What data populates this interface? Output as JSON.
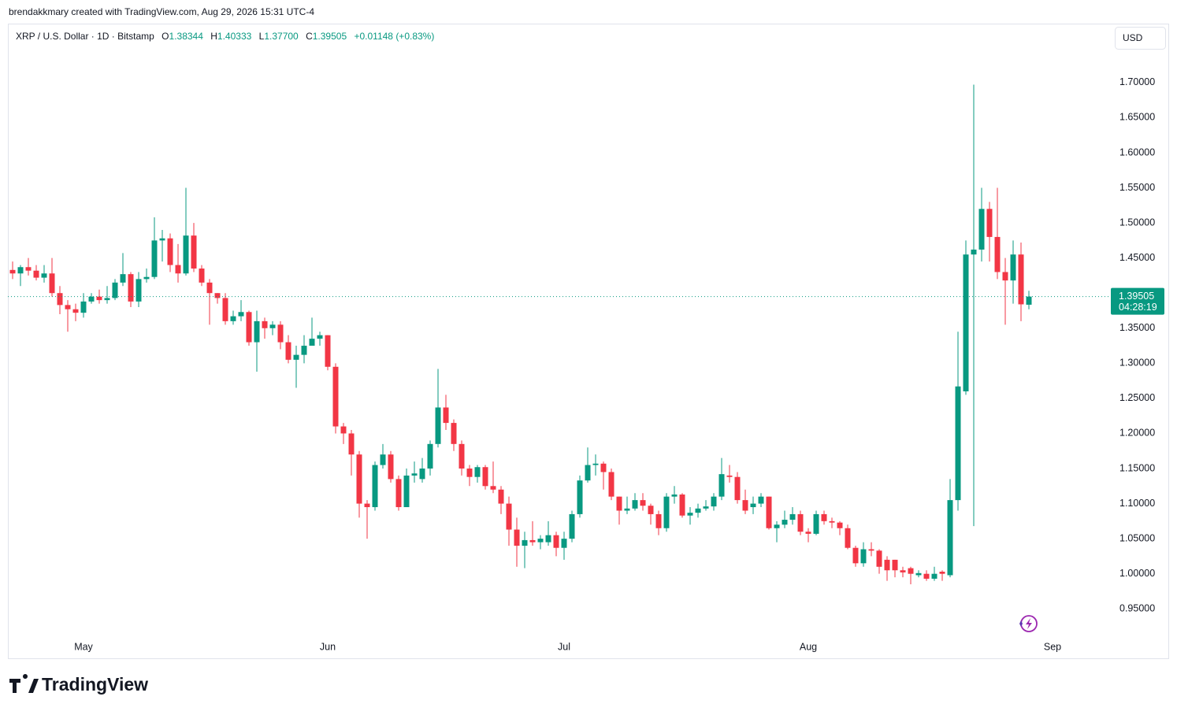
{
  "header": {
    "credit": "brendakkmary created with TradingView.com, Aug 29, 2026 15:31 UTC-4",
    "symbol": "XRP / U.S. Dollar · 1D · Bitstamp",
    "open_key": "O",
    "open_text": "1.38344",
    "high_key": "H",
    "high_text": "1.40333",
    "low_key": "L",
    "low_text": "1.37700",
    "close_key": "C",
    "close_text": "1.39505",
    "change_text": "+0.01148 (+0.83%)"
  },
  "currency_button": "USD",
  "last_price_label": "1.39505",
  "countdown": "04:28:19",
  "logo": "TradingView",
  "chart_data": {
    "type": "candlestick",
    "up_color": "#089981",
    "down_color": "#f23645",
    "categories": [
      null,
      null,
      null,
      null,
      null,
      null,
      null,
      null,
      null,
      "May",
      null,
      null,
      null,
      null,
      null,
      null,
      null,
      null,
      null,
      null,
      null,
      null,
      null,
      null,
      null,
      null,
      null,
      null,
      null,
      null,
      null,
      null,
      null,
      null,
      null,
      null,
      null,
      null,
      null,
      null,
      "Jun",
      null,
      null,
      null,
      null,
      null,
      null,
      null,
      null,
      null,
      null,
      null,
      null,
      null,
      null,
      null,
      null,
      null,
      null,
      null,
      null,
      null,
      null,
      null,
      null,
      null,
      null,
      null,
      null,
      null,
      "Jul",
      null,
      null,
      null,
      null,
      null,
      null,
      null,
      null,
      null,
      null,
      null,
      null,
      null,
      null,
      null,
      null,
      null,
      null,
      null,
      null,
      null,
      null,
      null,
      null,
      null,
      null,
      null,
      null,
      null,
      null,
      "Aug",
      null,
      null,
      null,
      null,
      null,
      null,
      null,
      null,
      null,
      null,
      null,
      null,
      null,
      null,
      null,
      null,
      null,
      null,
      null,
      null,
      null,
      null,
      null,
      null,
      null,
      null,
      null,
      null,
      null,
      null,
      "Sep"
    ],
    "open": [
      1.433,
      1.428,
      1.437,
      1.432,
      1.422,
      1.428,
      1.4,
      1.383,
      1.377,
      1.372,
      1.388,
      1.395,
      1.39,
      1.393,
      1.415,
      1.427,
      1.388,
      1.42,
      1.423,
      1.475,
      1.478,
      1.44,
      1.428,
      1.482,
      1.435,
      1.415,
      1.4,
      1.393,
      1.36,
      1.367,
      1.373,
      1.33,
      1.36,
      1.35,
      1.355,
      1.33,
      1.305,
      1.312,
      1.325,
      1.335,
      1.34,
      1.295,
      1.21,
      1.2,
      1.17,
      1.1,
      1.095,
      1.155,
      1.17,
      1.135,
      1.095,
      1.14,
      1.135,
      1.15,
      1.185,
      1.237,
      1.215,
      1.185,
      1.15,
      1.138,
      1.152,
      1.125,
      1.12,
      1.1,
      1.063,
      1.04,
      1.048,
      1.045,
      1.045,
      1.055,
      1.037,
      1.05,
      1.085,
      1.133,
      1.155,
      1.157,
      1.145,
      1.11,
      1.09,
      1.093,
      1.105,
      1.097,
      1.085,
      1.065,
      1.11,
      1.113,
      1.083,
      1.087,
      1.093,
      1.096,
      1.11,
      1.14,
      1.138,
      1.105,
      1.095,
      1.1,
      1.11,
      1.065,
      1.07,
      1.077,
      1.085,
      1.06,
      1.057,
      1.085,
      1.075,
      1.073,
      1.065,
      1.037,
      1.015,
      1.035,
      1.033,
      1.02,
      1.02,
      1.005,
      1.008,
      0.998,
      1.0,
      0.993,
      1.003,
      0.998,
      1.105,
      1.26,
      1.455,
      1.462,
      1.52,
      1.48,
      1.43,
      1.418,
      1.455,
      1.38344,
      null,
      null,
      null
    ],
    "high": [
      1.445,
      1.44,
      1.45,
      1.44,
      1.44,
      1.45,
      1.41,
      1.39,
      1.385,
      1.4,
      1.4,
      1.405,
      1.41,
      1.42,
      1.457,
      1.43,
      1.43,
      1.435,
      1.508,
      1.49,
      1.485,
      1.47,
      1.55,
      1.5,
      1.44,
      1.42,
      1.4,
      1.4,
      1.375,
      1.39,
      1.375,
      1.375,
      1.365,
      1.36,
      1.36,
      1.34,
      1.325,
      1.34,
      1.365,
      1.345,
      1.34,
      1.3,
      1.215,
      1.205,
      1.175,
      1.105,
      1.16,
      1.185,
      1.175,
      1.14,
      1.15,
      1.16,
      1.165,
      1.19,
      1.292,
      1.255,
      1.22,
      1.19,
      1.155,
      1.155,
      1.155,
      1.16,
      1.125,
      1.11,
      1.08,
      1.06,
      1.075,
      1.055,
      1.075,
      1.06,
      1.06,
      1.09,
      1.14,
      1.18,
      1.17,
      1.16,
      1.15,
      1.11,
      1.11,
      1.115,
      1.115,
      1.1,
      1.09,
      1.115,
      1.125,
      1.115,
      1.095,
      1.1,
      1.105,
      1.115,
      1.165,
      1.155,
      1.145,
      1.12,
      1.11,
      1.115,
      1.11,
      1.075,
      1.09,
      1.095,
      1.09,
      1.065,
      1.09,
      1.09,
      1.08,
      1.075,
      1.07,
      1.04,
      1.045,
      1.045,
      1.035,
      1.025,
      1.02,
      1.01,
      1.01,
      1.005,
      1.005,
      1.01,
      1.005,
      1.135,
      1.345,
      1.475,
      1.697,
      1.55,
      1.53,
      1.55,
      1.45,
      1.475,
      1.472,
      1.40333,
      null,
      null,
      null
    ],
    "low": [
      1.42,
      1.41,
      1.425,
      1.418,
      1.415,
      1.395,
      1.37,
      1.345,
      1.36,
      1.365,
      1.385,
      1.385,
      1.385,
      1.39,
      1.41,
      1.38,
      1.38,
      1.415,
      1.42,
      1.445,
      1.43,
      1.415,
      1.425,
      1.43,
      1.41,
      1.355,
      1.385,
      1.355,
      1.355,
      1.36,
      1.325,
      1.288,
      1.335,
      1.34,
      1.32,
      1.3,
      1.265,
      1.3,
      1.325,
      1.325,
      1.29,
      1.2,
      1.185,
      1.14,
      1.08,
      1.05,
      1.09,
      1.15,
      1.13,
      1.09,
      1.095,
      1.13,
      1.13,
      1.14,
      1.18,
      1.205,
      1.175,
      1.14,
      1.125,
      1.13,
      1.12,
      1.115,
      1.085,
      1.04,
      1.01,
      1.008,
      1.04,
      1.035,
      1.04,
      1.025,
      1.02,
      1.045,
      1.08,
      1.13,
      1.14,
      1.12,
      1.105,
      1.07,
      1.085,
      1.09,
      1.09,
      1.07,
      1.055,
      1.06,
      1.1,
      1.08,
      1.07,
      1.08,
      1.09,
      1.09,
      1.105,
      1.13,
      1.1,
      1.085,
      1.085,
      1.095,
      1.063,
      1.045,
      1.065,
      1.07,
      1.055,
      1.045,
      1.055,
      1.07,
      1.065,
      1.055,
      1.035,
      1.01,
      1.01,
      1.025,
      1.0,
      0.99,
      0.995,
      0.995,
      0.985,
      0.995,
      0.99,
      0.99,
      0.99,
      0.995,
      1.09,
      1.255,
      1.068,
      1.445,
      1.445,
      1.42,
      1.355,
      1.385,
      1.36,
      1.377,
      null,
      null,
      null
    ],
    "close": [
      1.428,
      1.437,
      1.432,
      1.422,
      1.428,
      1.4,
      1.383,
      1.377,
      1.372,
      1.388,
      1.395,
      1.39,
      1.393,
      1.415,
      1.427,
      1.388,
      1.42,
      1.423,
      1.475,
      1.478,
      1.44,
      1.428,
      1.482,
      1.435,
      1.415,
      1.4,
      1.393,
      1.36,
      1.367,
      1.373,
      1.33,
      1.36,
      1.35,
      1.355,
      1.33,
      1.305,
      1.312,
      1.325,
      1.335,
      1.34,
      1.295,
      1.21,
      1.2,
      1.17,
      1.1,
      1.095,
      1.155,
      1.17,
      1.135,
      1.095,
      1.14,
      1.143,
      1.15,
      1.185,
      1.237,
      1.215,
      1.185,
      1.15,
      1.138,
      1.152,
      1.125,
      1.12,
      1.1,
      1.063,
      1.04,
      1.048,
      1.045,
      1.05,
      1.055,
      1.037,
      1.05,
      1.085,
      1.133,
      1.155,
      1.157,
      1.145,
      1.11,
      1.09,
      1.093,
      1.105,
      1.097,
      1.085,
      1.065,
      1.11,
      1.113,
      1.083,
      1.087,
      1.093,
      1.096,
      1.11,
      1.142,
      1.138,
      1.105,
      1.09,
      1.1,
      1.11,
      1.065,
      1.07,
      1.077,
      1.085,
      1.06,
      1.057,
      1.085,
      1.075,
      1.073,
      1.065,
      1.037,
      1.015,
      1.035,
      1.033,
      1.01,
      1.005,
      1.005,
      1.002,
      1.0,
      1.001,
      0.993,
      1.0,
      1.0,
      1.105,
      1.267,
      1.455,
      1.462,
      1.52,
      1.48,
      1.43,
      1.418,
      1.455,
      1.384,
      1.39505,
      null,
      null,
      null
    ],
    "ylim": [
      0.911,
      1.784
    ],
    "yticks": [
      {
        "value": 0.95,
        "label": "0.95000"
      },
      {
        "value": 1.0,
        "label": "1.00000"
      },
      {
        "value": 1.05,
        "label": "1.05000"
      },
      {
        "value": 1.1,
        "label": "1.10000"
      },
      {
        "value": 1.15,
        "label": "1.15000"
      },
      {
        "value": 1.2,
        "label": "1.20000"
      },
      {
        "value": 1.25,
        "label": "1.25000"
      },
      {
        "value": 1.3,
        "label": "1.30000"
      },
      {
        "value": 1.35,
        "label": "1.35000"
      },
      {
        "value": 1.4,
        "label": "1.40000"
      },
      {
        "value": 1.45,
        "label": "1.45000"
      },
      {
        "value": 1.5,
        "label": "1.50000"
      },
      {
        "value": 1.55,
        "label": "1.55000"
      },
      {
        "value": 1.6,
        "label": "1.60000"
      },
      {
        "value": 1.65,
        "label": "1.65000"
      },
      {
        "value": 1.7,
        "label": "1.70000"
      }
    ],
    "grid": false
  }
}
